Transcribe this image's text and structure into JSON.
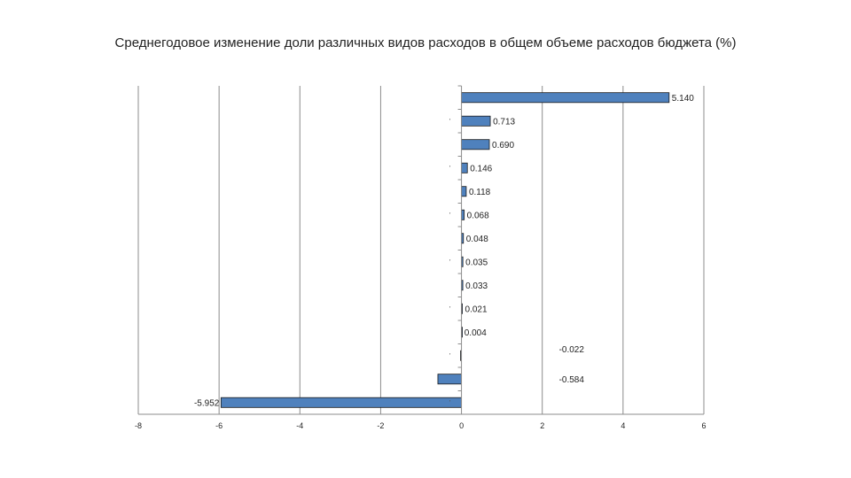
{
  "chart_data": {
    "type": "bar",
    "orientation": "horizontal",
    "title": "Среднегодовое изменение доли различных видов расходов в общем объеме расходов бюджета (%)",
    "xlabel": "",
    "ylabel": "",
    "categories": [
      "’",
      "’",
      "’",
      "’",
      "’",
      "’",
      "’",
      "’",
      "’",
      "’",
      "’",
      "’",
      "’",
      "’"
    ],
    "values": [
      5.14,
      0.713,
      0.69,
      0.146,
      0.118,
      0.068,
      0.048,
      0.035,
      0.033,
      0.021,
      0.004,
      -0.022,
      -0.584,
      -5.952
    ],
    "value_labels": [
      "5.140",
      "0.713",
      "0.690",
      "0.146",
      "0.118",
      "0.068",
      "0.048",
      "0.035",
      "0.033",
      "0.021",
      "0.004",
      "-0.022",
      "-0.584",
      "-5.952"
    ],
    "xlim": [
      -8,
      6
    ],
    "xticks": [
      "-8",
      "-6",
      "-4",
      "-2",
      "0",
      "2",
      "4",
      "6"
    ],
    "grid": "vertical",
    "legend": "none",
    "bar_color": "#4f81bd",
    "bar_stroke": "#1a1a1a",
    "grid_color": "#8c8c8c"
  }
}
